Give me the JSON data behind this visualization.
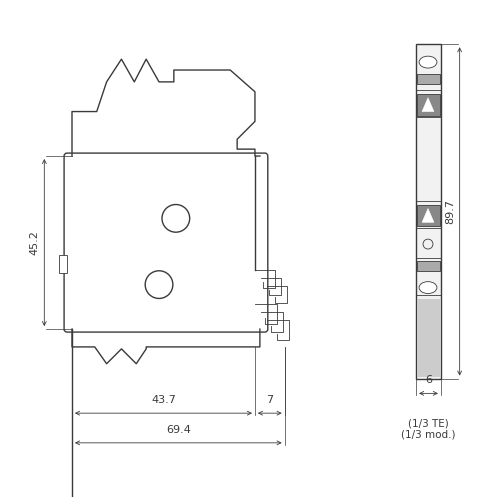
{
  "bg_color": "#ffffff",
  "line_color": "#3a3a3a",
  "dim_color": "#3a3a3a",
  "text_color": "#3a3a3a",
  "label_452": "45.2",
  "label_897": "89.7",
  "label_437": "43.7",
  "label_7": "7",
  "label_694": "69.4",
  "label_6": "6",
  "label_te": "(1/3 TE)\n(1/3 mod.)"
}
